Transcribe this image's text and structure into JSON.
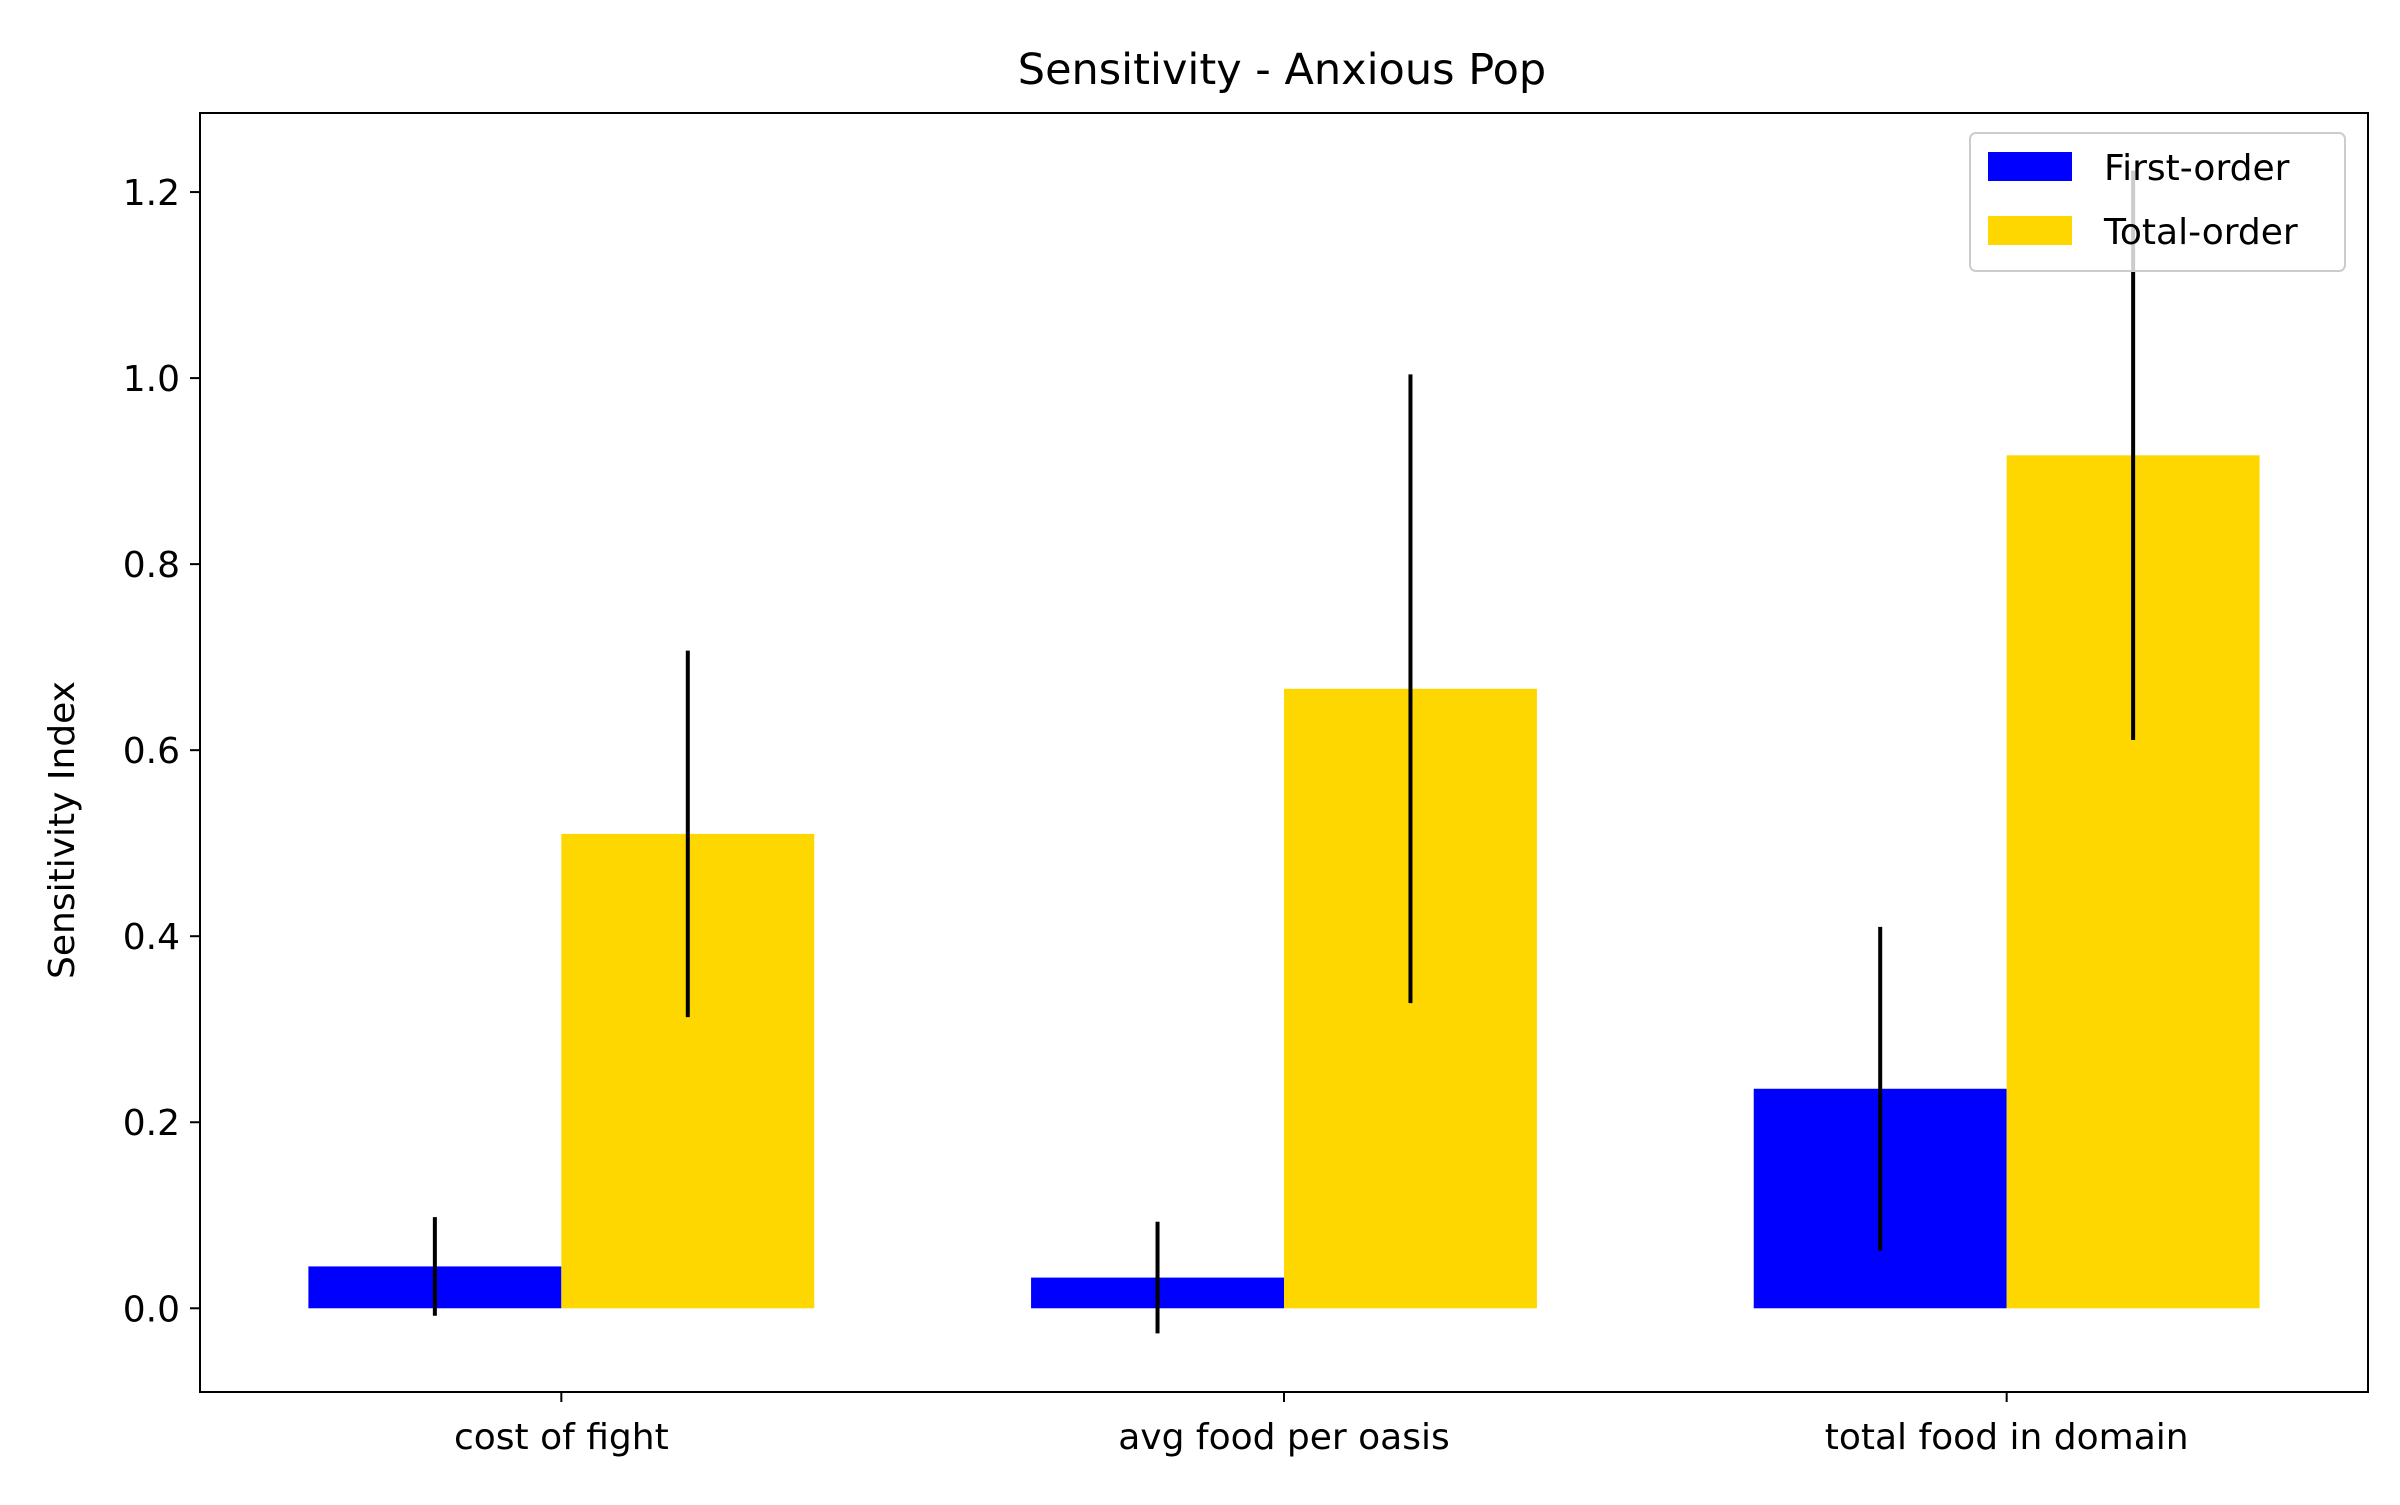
{
  "chart_data": {
    "type": "bar",
    "title": "Sensitivity - Anxious Pop",
    "xlabel": "",
    "ylabel": "Sensitivity Index",
    "categories": [
      "cost of fight",
      "avg food per oasis",
      "total food in domain"
    ],
    "series": [
      {
        "name": "First-order",
        "color": "#0000ff",
        "values": [
          0.045,
          0.033,
          0.236
        ],
        "errors": [
          0.053,
          0.06,
          0.174
        ]
      },
      {
        "name": "Total-order",
        "color": "#ffd700",
        "values": [
          0.51,
          0.666,
          0.917
        ],
        "errors": [
          0.197,
          0.338,
          0.306
        ]
      }
    ],
    "ylim": [
      -0.09,
      1.285
    ],
    "yticks": [
      0.0,
      0.2,
      0.4,
      0.6,
      0.8,
      1.0,
      1.2
    ],
    "ytick_labels": [
      "0.0",
      "0.2",
      "0.4",
      "0.6",
      "0.8",
      "1.0",
      "1.2"
    ],
    "grid": false,
    "legend": {
      "position": "top-right",
      "entries": [
        "First-order",
        "Total-order"
      ]
    }
  }
}
